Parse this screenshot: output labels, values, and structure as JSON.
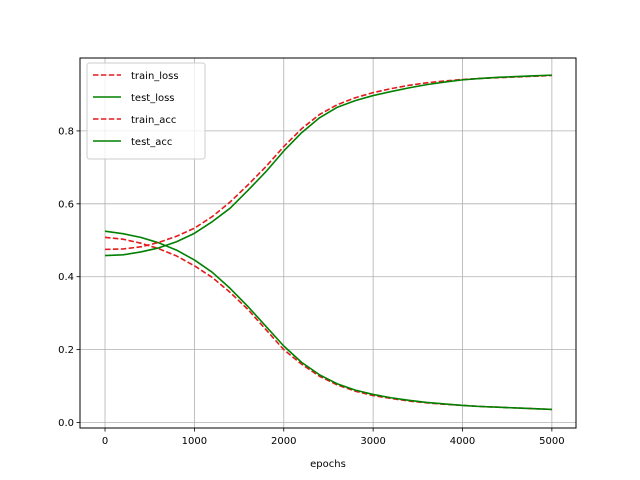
{
  "chart_data": {
    "type": "line",
    "xlabel": "epochs",
    "ylabel": "",
    "title": "",
    "xlim": [
      -280,
      5270
    ],
    "ylim": [
      -0.015,
      1.0
    ],
    "xticks": [
      0,
      1000,
      2000,
      3000,
      4000,
      5000
    ],
    "xtick_labels": [
      "0",
      "1000",
      "2000",
      "3000",
      "4000",
      "5000"
    ],
    "yticks": [
      0.0,
      0.2,
      0.4,
      0.6,
      0.8
    ],
    "ytick_labels": [
      "0.0",
      "0.2",
      "0.4",
      "0.6",
      "0.8"
    ],
    "grid": true,
    "legend_position": "top-left",
    "x": [
      0,
      200,
      400,
      600,
      800,
      1000,
      1200,
      1400,
      1600,
      1800,
      2000,
      2200,
      2400,
      2600,
      2800,
      3000,
      3200,
      3400,
      3600,
      3800,
      4000,
      4200,
      4400,
      4600,
      4800,
      5000
    ],
    "series": [
      {
        "name": "train_loss",
        "color": "#e41a1c",
        "dash": "dashed",
        "values": [
          0.508,
          0.503,
          0.492,
          0.477,
          0.457,
          0.43,
          0.398,
          0.357,
          0.31,
          0.255,
          0.2,
          0.16,
          0.127,
          0.103,
          0.086,
          0.074,
          0.066,
          0.059,
          0.054,
          0.05,
          0.047,
          0.044,
          0.042,
          0.04,
          0.038,
          0.036
        ]
      },
      {
        "name": "test_loss",
        "color": "#008000",
        "dash": "solid",
        "values": [
          0.525,
          0.518,
          0.508,
          0.493,
          0.473,
          0.446,
          0.412,
          0.368,
          0.318,
          0.264,
          0.21,
          0.165,
          0.131,
          0.106,
          0.089,
          0.077,
          0.068,
          0.061,
          0.055,
          0.051,
          0.047,
          0.044,
          0.042,
          0.04,
          0.038,
          0.036
        ]
      },
      {
        "name": "train_acc",
        "color": "#e41a1c",
        "dash": "dashed",
        "values": [
          0.475,
          0.476,
          0.482,
          0.494,
          0.511,
          0.533,
          0.565,
          0.605,
          0.652,
          0.702,
          0.757,
          0.806,
          0.845,
          0.872,
          0.891,
          0.905,
          0.916,
          0.925,
          0.932,
          0.937,
          0.941,
          0.944,
          0.946,
          0.948,
          0.95,
          0.952
        ]
      },
      {
        "name": "test_acc",
        "color": "#008000",
        "dash": "solid",
        "values": [
          0.458,
          0.46,
          0.468,
          0.479,
          0.496,
          0.519,
          0.551,
          0.588,
          0.637,
          0.688,
          0.745,
          0.795,
          0.836,
          0.865,
          0.883,
          0.897,
          0.908,
          0.918,
          0.927,
          0.934,
          0.94,
          0.944,
          0.947,
          0.949,
          0.951,
          0.953
        ]
      }
    ]
  }
}
